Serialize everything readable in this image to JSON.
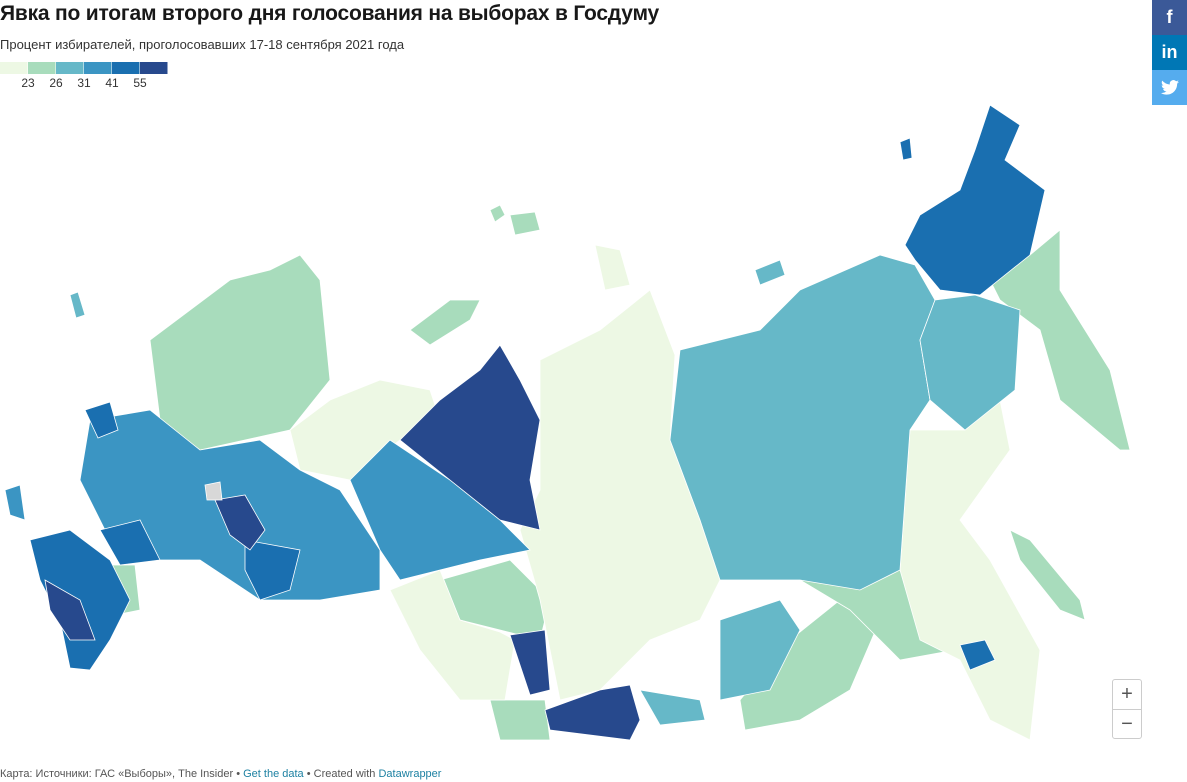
{
  "header": {
    "title": "Явка по итогам второго дня голосования на выборах в Госдуму",
    "subtitle": "Процент избирателей, проголосовавших 17-18 сентября 2021 года"
  },
  "legend": {
    "ticks": [
      23,
      26,
      31,
      41,
      55
    ],
    "colors": [
      "#edf8e4",
      "#a8dcbc",
      "#66b8c8",
      "#3b95c3",
      "#1a6fb0",
      "#27498d"
    ]
  },
  "share": {
    "facebook": "f",
    "linkedin": "in"
  },
  "zoom": {
    "in": "+",
    "out": "−"
  },
  "footer": {
    "source": "Карта: Источники: ГАС «Выборы», The Insider",
    "separator": "•",
    "data_link": "Get the data",
    "created": "Created with",
    "tool": "Datawrapper"
  }
}
